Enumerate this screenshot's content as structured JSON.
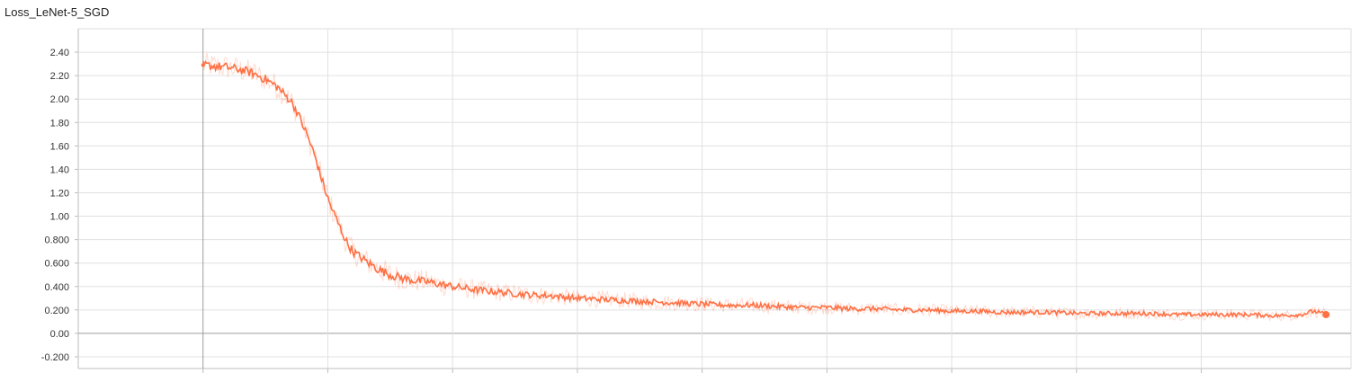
{
  "chart_data": {
    "type": "line",
    "title": "Loss_LeNet-5_SGD",
    "xlabel": "",
    "ylabel": "",
    "ylim": [
      -0.3,
      2.6
    ],
    "xlim": [
      -1,
      9.2
    ],
    "grid": true,
    "y_ticks": [
      "2.40",
      "2.20",
      "2.00",
      "1.80",
      "1.60",
      "1.40",
      "1.20",
      "1.00",
      "0.800",
      "0.600",
      "0.400",
      "0.200",
      "0.00",
      "-0.200"
    ],
    "y_tick_values": [
      2.4,
      2.2,
      2.0,
      1.8,
      1.6,
      1.4,
      1.2,
      1.0,
      0.8,
      0.6,
      0.4,
      0.2,
      0.0,
      -0.2
    ],
    "x_grid_values": [
      0,
      1,
      2,
      3,
      4,
      5,
      6,
      7,
      8
    ],
    "series": [
      {
        "color": "#ff7043",
        "x": [
          0,
          0.1,
          0.2,
          0.3,
          0.4,
          0.5,
          0.6,
          0.65,
          0.7,
          0.75,
          0.8,
          0.85,
          0.9,
          0.95,
          1.0,
          1.05,
          1.1,
          1.15,
          1.2,
          1.3,
          1.4,
          1.5,
          1.6,
          1.7,
          1.8,
          1.9,
          2.0,
          2.2,
          2.4,
          2.6,
          2.8,
          3.0,
          3.2,
          3.4,
          3.6,
          3.8,
          4.0,
          4.2,
          4.4,
          4.6,
          4.8,
          5.0,
          5.2,
          5.4,
          5.6,
          5.8,
          6.0,
          6.2,
          6.4,
          6.6,
          6.8,
          7.0,
          7.2,
          7.4,
          7.6,
          7.8,
          8.0,
          8.2,
          8.4,
          8.6,
          8.8,
          8.9,
          9.0
        ],
        "values": [
          2.29,
          2.28,
          2.27,
          2.25,
          2.22,
          2.17,
          2.1,
          2.04,
          1.99,
          1.9,
          1.78,
          1.65,
          1.5,
          1.32,
          1.15,
          1.02,
          0.9,
          0.78,
          0.7,
          0.62,
          0.55,
          0.5,
          0.47,
          0.45,
          0.44,
          0.42,
          0.4,
          0.37,
          0.35,
          0.33,
          0.32,
          0.3,
          0.29,
          0.28,
          0.27,
          0.26,
          0.25,
          0.24,
          0.24,
          0.23,
          0.22,
          0.22,
          0.21,
          0.21,
          0.2,
          0.2,
          0.19,
          0.19,
          0.18,
          0.18,
          0.18,
          0.17,
          0.17,
          0.17,
          0.17,
          0.16,
          0.16,
          0.16,
          0.16,
          0.15,
          0.16,
          0.19,
          0.16
        ]
      }
    ]
  }
}
